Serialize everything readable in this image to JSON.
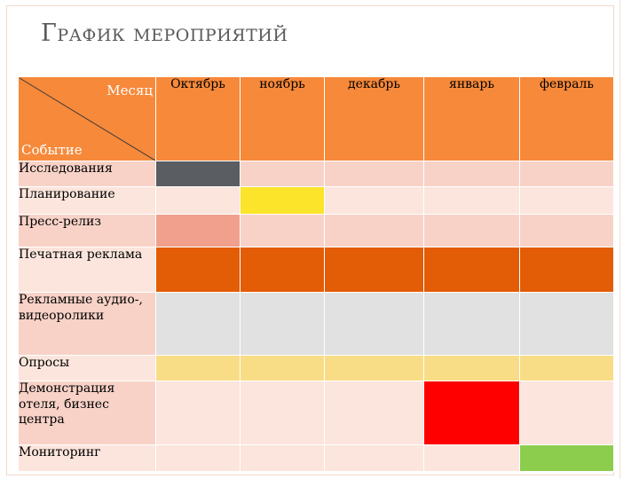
{
  "title": "График мероприятий",
  "header": {
    "corner_top": "Месяц",
    "corner_bottom": "Событие",
    "months": [
      "Октябрь",
      "ноябрь",
      "декабрь",
      "январь",
      "февраль"
    ]
  },
  "colors": {
    "header": "#f7893a",
    "row_light": "#fbe5dc",
    "row_pink": "#f8d2c7",
    "research": "#5a5d62",
    "planning": "#fbe42a",
    "press": "#f0a08c",
    "print": "#e35c06",
    "media": "#e1e1e1",
    "polls": "#f8dd86",
    "demo": "#ff0000",
    "monitoring": "#8ccd4e"
  },
  "rows": [
    {
      "label": "Исследования",
      "cells": [
        "#5a5d62",
        "#f8d2c7",
        "#f8d2c7",
        "#f8d2c7",
        "#f8d2c7"
      ],
      "label_bg": "#f8d2c7"
    },
    {
      "label": "Планирование",
      "cells": [
        "#fbe5dc",
        "#fbe42a",
        "#fbe5dc",
        "#fbe5dc",
        "#fbe5dc"
      ],
      "label_bg": "#fbe5dc"
    },
    {
      "label": "Пресс-релиз",
      "cells": [
        "#f0a08c",
        "#f8d2c7",
        "#f8d2c7",
        "#f8d2c7",
        "#f8d2c7"
      ],
      "label_bg": "#f8d2c7"
    },
    {
      "label": "Печатная реклама",
      "cells": [
        "#e35c06",
        "#e35c06",
        "#e35c06",
        "#e35c06",
        "#e35c06"
      ],
      "label_bg": "#fbe5dc"
    },
    {
      "label": "Рекламные аудио-, видеоролики",
      "cells": [
        "#e1e1e1",
        "#e1e1e1",
        "#e1e1e1",
        "#e1e1e1",
        "#e1e1e1"
      ],
      "label_bg": "#f8d2c7"
    },
    {
      "label": "Опросы",
      "cells": [
        "#f8dd86",
        "#f8dd86",
        "#f8dd86",
        "#f8dd86",
        "#f8dd86"
      ],
      "label_bg": "#fbe5dc"
    },
    {
      "label": "Демонстрация отеля, бизнес центра",
      "cells": [
        "#fbe5dc",
        "#fbe5dc",
        "#fbe5dc",
        "#ff0000",
        "#fbe5dc"
      ],
      "label_bg": "#f8d2c7"
    },
    {
      "label": "Мониторинг",
      "cells": [
        "#fbe5dc",
        "#fbe5dc",
        "#fbe5dc",
        "#fbe5dc",
        "#8ccd4e"
      ],
      "label_bg": "#fbe5dc"
    }
  ]
}
